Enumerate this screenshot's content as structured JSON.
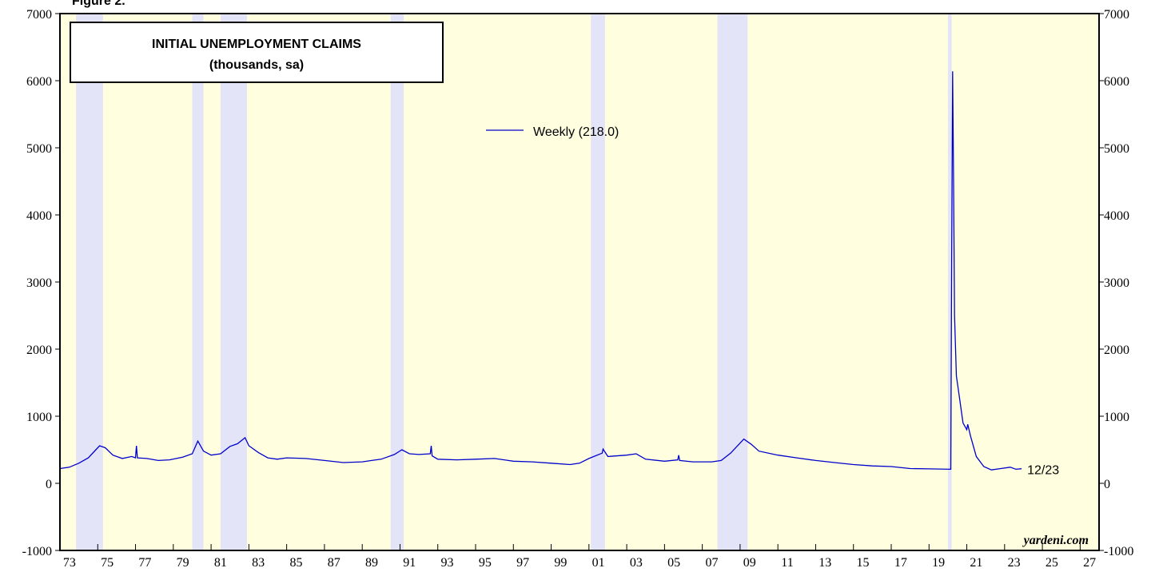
{
  "chart_data": {
    "type": "line",
    "figure_label": "Figure 2.",
    "title": "INITIAL UNEMPLOYMENT CLAIMS",
    "subtitle": "(thousands, sa)",
    "source": "yardeni.com",
    "end_label": "12/23",
    "background_color": "#ffffe0",
    "shade_color": "#e4e4f8",
    "shaded_periods": [
      [
        1973.85,
        1975.28
      ],
      [
        1980.0,
        1980.6
      ],
      [
        1981.5,
        1982.9
      ],
      [
        1990.5,
        1991.2
      ],
      [
        2001.1,
        2001.85
      ],
      [
        2007.8,
        2009.4
      ],
      [
        2020.0,
        2020.2
      ]
    ],
    "xlim": [
      1973,
      2028
    ],
    "xticks": [
      {
        "value": 1973,
        "label": "73"
      },
      {
        "value": 1975,
        "label": "75"
      },
      {
        "value": 1977,
        "label": "77"
      },
      {
        "value": 1979,
        "label": "79"
      },
      {
        "value": 1981,
        "label": "81"
      },
      {
        "value": 1983,
        "label": "83"
      },
      {
        "value": 1985,
        "label": "85"
      },
      {
        "value": 1987,
        "label": "87"
      },
      {
        "value": 1989,
        "label": "89"
      },
      {
        "value": 1991,
        "label": "91"
      },
      {
        "value": 1993,
        "label": "93"
      },
      {
        "value": 1995,
        "label": "95"
      },
      {
        "value": 1997,
        "label": "97"
      },
      {
        "value": 1999,
        "label": "99"
      },
      {
        "value": 2001,
        "label": "01"
      },
      {
        "value": 2003,
        "label": "03"
      },
      {
        "value": 2005,
        "label": "05"
      },
      {
        "value": 2007,
        "label": "07"
      },
      {
        "value": 2009,
        "label": "09"
      },
      {
        "value": 2011,
        "label": "11"
      },
      {
        "value": 2013,
        "label": "13"
      },
      {
        "value": 2015,
        "label": "15"
      },
      {
        "value": 2017,
        "label": "17"
      },
      {
        "value": 2019,
        "label": "19"
      },
      {
        "value": 2021,
        "label": "21"
      },
      {
        "value": 2023,
        "label": "23"
      },
      {
        "value": 2025,
        "label": "25"
      },
      {
        "value": 2027,
        "label": "27"
      }
    ],
    "ylim": [
      -1000,
      7000
    ],
    "yticks": [
      -1000,
      0,
      1000,
      2000,
      3000,
      4000,
      5000,
      6000,
      7000
    ],
    "x": [
      1973.0,
      1973.5,
      1974.0,
      1974.5,
      1974.9,
      1975.1,
      1975.4,
      1975.8,
      1976.3,
      1976.8,
      1977.0,
      1977.05,
      1977.1,
      1977.6,
      1978.2,
      1978.8,
      1979.5,
      1980.0,
      1980.3,
      1980.6,
      1981.0,
      1981.5,
      1982.0,
      1982.4,
      1982.8,
      1983.0,
      1983.5,
      1984.0,
      1984.5,
      1985.0,
      1986.0,
      1987.0,
      1988.0,
      1989.0,
      1989.5,
      1990.0,
      1990.7,
      1991.1,
      1991.5,
      1992.0,
      1992.6,
      1992.65,
      1992.7,
      1993.0,
      1994.0,
      1995.0,
      1996.0,
      1997.0,
      1998.0,
      1999.0,
      2000.0,
      2000.5,
      2001.0,
      2001.7,
      2001.75,
      2002.0,
      2003.0,
      2003.5,
      2004.0,
      2005.0,
      2005.7,
      2005.75,
      2005.8,
      2006.5,
      2007.5,
      2008.0,
      2008.5,
      2009.2,
      2009.6,
      2010.0,
      2011.0,
      2012.0,
      2013.0,
      2014.0,
      2015.0,
      2016.0,
      2017.0,
      2018.0,
      2019.0,
      2020.15,
      2020.2,
      2020.25,
      2020.3,
      2020.35,
      2020.45,
      2020.6,
      2020.8,
      2021.0,
      2021.05,
      2021.2,
      2021.5,
      2021.9,
      2022.3,
      2022.8,
      2023.3,
      2023.6,
      2023.9
    ],
    "series": [
      {
        "name": "Weekly (218.0)",
        "color": "#0000cc",
        "values": [
          220,
          240,
          300,
          380,
          500,
          560,
          530,
          420,
          370,
          400,
          380,
          560,
          380,
          370,
          340,
          350,
          390,
          440,
          630,
          480,
          420,
          440,
          550,
          590,
          680,
          560,
          460,
          380,
          360,
          380,
          370,
          340,
          310,
          320,
          340,
          360,
          430,
          500,
          440,
          430,
          440,
          560,
          410,
          360,
          350,
          360,
          370,
          330,
          320,
          300,
          280,
          300,
          370,
          450,
          510,
          400,
          420,
          440,
          360,
          330,
          350,
          420,
          340,
          320,
          320,
          340,
          450,
          660,
          580,
          480,
          420,
          380,
          340,
          310,
          280,
          260,
          250,
          220,
          215,
          210,
          3300,
          6140,
          4500,
          2500,
          1600,
          1300,
          900,
          800,
          880,
          700,
          400,
          250,
          200,
          220,
          240,
          210,
          218
        ]
      }
    ]
  }
}
